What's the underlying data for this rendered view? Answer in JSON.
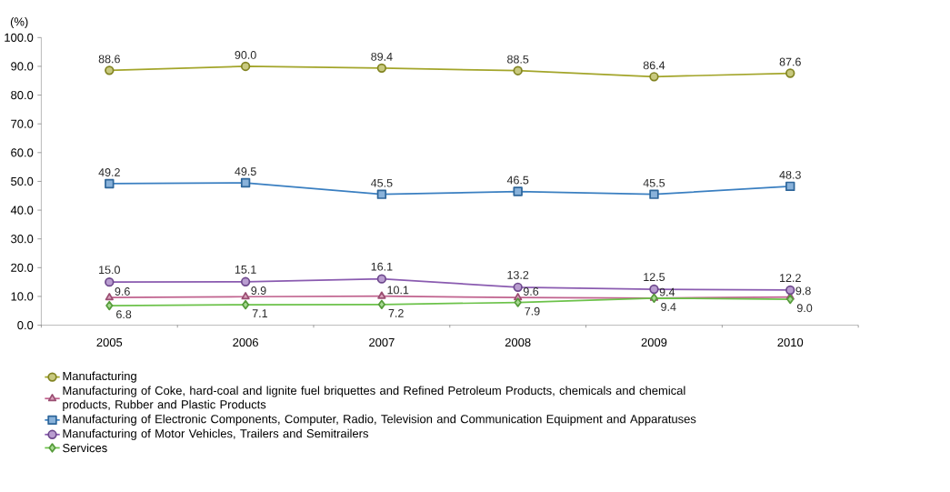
{
  "chart_data": {
    "type": "line",
    "ylabel": "(%)",
    "categories": [
      "2005",
      "2006",
      "2007",
      "2008",
      "2009",
      "2010"
    ],
    "ylim": [
      0,
      100
    ],
    "yticks": [
      {
        "value": 0,
        "label": "0.0"
      },
      {
        "value": 10,
        "label": "10.0"
      },
      {
        "value": 20,
        "label": "20.0"
      },
      {
        "value": 30,
        "label": "30.0"
      },
      {
        "value": 40,
        "label": "40.0"
      },
      {
        "value": 50,
        "label": "50.0"
      },
      {
        "value": 60,
        "label": "60.0"
      },
      {
        "value": 70,
        "label": "70.0"
      },
      {
        "value": 80,
        "label": "80.0"
      },
      {
        "value": 90,
        "label": "90.0"
      },
      {
        "value": 100,
        "label": "100.0"
      }
    ],
    "grid": false,
    "legend": "bottom",
    "series": [
      {
        "name": "Manufacturing",
        "color": "#a3a52a",
        "marker": "circle",
        "values": [
          88.6,
          90.0,
          89.4,
          88.5,
          86.4,
          87.6
        ],
        "value_labels": [
          "88.6",
          "90.0",
          "89.4",
          "88.5",
          "86.4",
          "87.6"
        ]
      },
      {
        "name": "Manufacturing of Coke, hard-coal and lignite fuel briquettes and Refined Petroleum Products, chemicals and chemical products, Rubber and Plastic Products",
        "color": "#c0628e",
        "marker": "triangle",
        "values": [
          9.6,
          9.9,
          10.1,
          9.6,
          9.4,
          9.8
        ],
        "value_labels": [
          "9.6",
          "9.9",
          "10.1",
          "9.6",
          "9.4",
          "9.8"
        ]
      },
      {
        "name": "Manufacturing of Electronic Components, Computer, Radio, Television and Communication Equipment and Apparatuses",
        "color": "#3a7fc1",
        "marker": "square",
        "values": [
          49.2,
          49.5,
          45.5,
          46.5,
          45.5,
          48.3
        ],
        "value_labels": [
          "49.2",
          "49.5",
          "45.5",
          "46.5",
          "45.5",
          "48.3"
        ]
      },
      {
        "name": "Manufacturing of Motor Vehicles, Trailers and Semitrailers",
        "color": "#8a5bb0",
        "marker": "circle",
        "values": [
          15.0,
          15.1,
          16.1,
          13.2,
          12.5,
          12.2
        ],
        "value_labels": [
          "15.0",
          "15.1",
          "16.1",
          "13.2",
          "12.5",
          "12.2"
        ]
      },
      {
        "name": "Services",
        "color": "#6cc24a",
        "marker": "diamond",
        "values": [
          6.8,
          7.1,
          7.2,
          7.9,
          9.4,
          9.0
        ],
        "value_labels": [
          "6.8",
          "7.1",
          "7.2",
          "7.9",
          "9.4",
          "9.0"
        ]
      }
    ]
  }
}
